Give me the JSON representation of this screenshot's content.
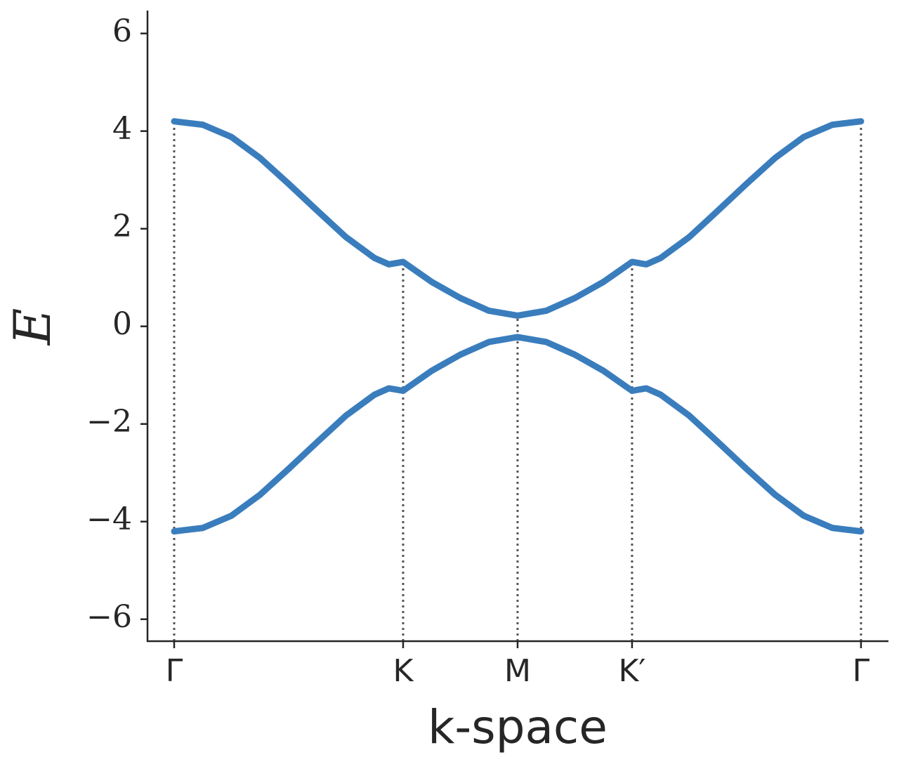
{
  "chart_data": {
    "type": "line",
    "xlabel": "k-space",
    "ylabel": "E",
    "x": [
      0,
      0.25,
      0.5,
      0.75,
      1,
      1.25,
      1.5,
      1.75,
      1.875,
      2,
      2.25,
      2.5,
      2.75,
      3,
      3.25,
      3.5,
      3.75,
      4,
      4.125,
      4.25,
      4.5,
      4.75,
      5,
      5.25,
      5.5,
      5.75,
      6
    ],
    "series": [
      {
        "color": "#3a7dbd",
        "values": [
          4.2,
          4.13,
          3.88,
          3.45,
          2.92,
          2.37,
          1.83,
          1.4,
          1.27,
          1.32,
          0.91,
          0.58,
          0.32,
          0.22,
          0.32,
          0.58,
          0.91,
          1.32,
          1.27,
          1.4,
          1.83,
          2.37,
          2.92,
          3.45,
          3.88,
          4.13,
          4.2
        ]
      },
      {
        "color": "#3a7dbd",
        "values": [
          -4.2,
          -4.13,
          -3.88,
          -3.45,
          -2.92,
          -2.37,
          -1.83,
          -1.4,
          -1.27,
          -1.32,
          -0.91,
          -0.58,
          -0.32,
          -0.22,
          -0.32,
          -0.58,
          -0.91,
          -1.32,
          -1.27,
          -1.4,
          -1.83,
          -2.37,
          -2.92,
          -3.45,
          -3.88,
          -4.13,
          -4.2
        ]
      }
    ],
    "xlim": [
      -0.233,
      6.24
    ],
    "ylim": [
      -6.45,
      6.47
    ],
    "xticks": [
      {
        "value": 0,
        "label": "Γ"
      },
      {
        "value": 2,
        "label": "K"
      },
      {
        "value": 3,
        "label": "M"
      },
      {
        "value": 4,
        "label": "K′"
      },
      {
        "value": 6,
        "label": "Γ"
      }
    ],
    "yticks": [
      {
        "value": -6,
        "label": "−6"
      },
      {
        "value": -4,
        "label": "−4"
      },
      {
        "value": -2,
        "label": "−2"
      },
      0,
      2,
      4,
      6
    ],
    "vlines_at_xticks": true
  }
}
